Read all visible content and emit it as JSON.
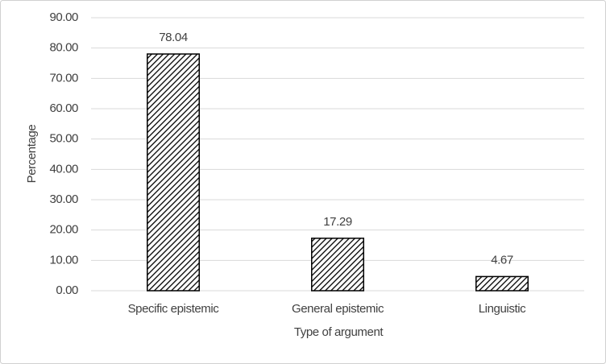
{
  "chart_data": {
    "type": "bar",
    "categories": [
      "Specific epistemic",
      "General epistemic",
      "Linguistic"
    ],
    "values": [
      78.04,
      17.29,
      4.67
    ],
    "color": "#000000",
    "ylim": [
      0,
      90
    ],
    "yticks": [
      {
        "value": 0,
        "label": "0.00"
      },
      {
        "value": 10,
        "label": "10.00"
      },
      {
        "value": 20,
        "label": "20.00"
      },
      {
        "value": 30,
        "label": "30.00"
      },
      {
        "value": 40,
        "label": "40.00"
      },
      {
        "value": 50,
        "label": "50.00"
      },
      {
        "value": 60,
        "label": "60.00"
      },
      {
        "value": 70,
        "label": "70.00"
      },
      {
        "value": 80,
        "label": "80.00"
      },
      {
        "value": 90,
        "label": "90.00"
      }
    ],
    "grid": true,
    "ylabel": "Percentage",
    "xlabel": "Type of argument"
  }
}
